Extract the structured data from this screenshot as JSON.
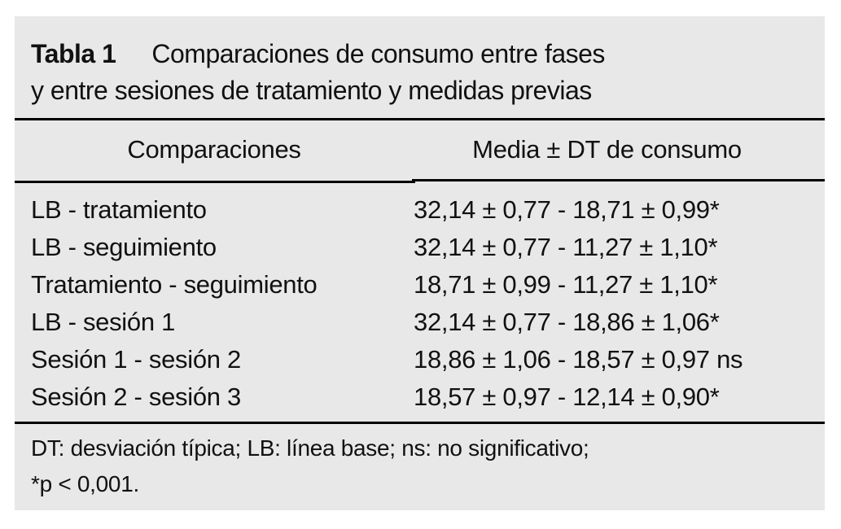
{
  "table": {
    "label": "Tabla 1",
    "title_line1": "Comparaciones de consumo entre fases",
    "title_line2": "y entre sesiones de tratamiento y medidas previas",
    "columns": {
      "comparisons": "Comparaciones",
      "values": "Media ± DT de consumo"
    },
    "rows": [
      {
        "comparison": "LB - tratamiento",
        "value": "32,14 ± 0,77 - 18,71 ± 0,99",
        "significance": "*"
      },
      {
        "comparison": "LB - seguimiento",
        "value": "32,14 ± 0,77 - 11,27 ± 1,10",
        "significance": "*"
      },
      {
        "comparison": "Tratamiento - seguimiento",
        "value": "18,71 ± 0,99 - 11,27 ± 1,10",
        "significance": "*"
      },
      {
        "comparison": "LB - sesión 1",
        "value": "32,14 ± 0,77 - 18,86 ± 1,06",
        "significance": "*"
      },
      {
        "comparison": "Sesión 1 - sesión 2",
        "value": "18,86 ± 1,06 - 18,57 ± 0,97",
        "significance": " ns"
      },
      {
        "comparison": "Sesión 2 - sesión 3",
        "value": "18,57 ± 0,97 - 12,14 ± 0,90",
        "significance": "*"
      }
    ],
    "footnote": {
      "line1": "DT: desviación típica; LB: línea base; ns: no significativo;",
      "line2_sig": "*",
      "line2": "p < 0,001."
    },
    "colors": {
      "panel_background": "#e8e8e8",
      "text": "#111111",
      "rule": "#000000"
    }
  }
}
